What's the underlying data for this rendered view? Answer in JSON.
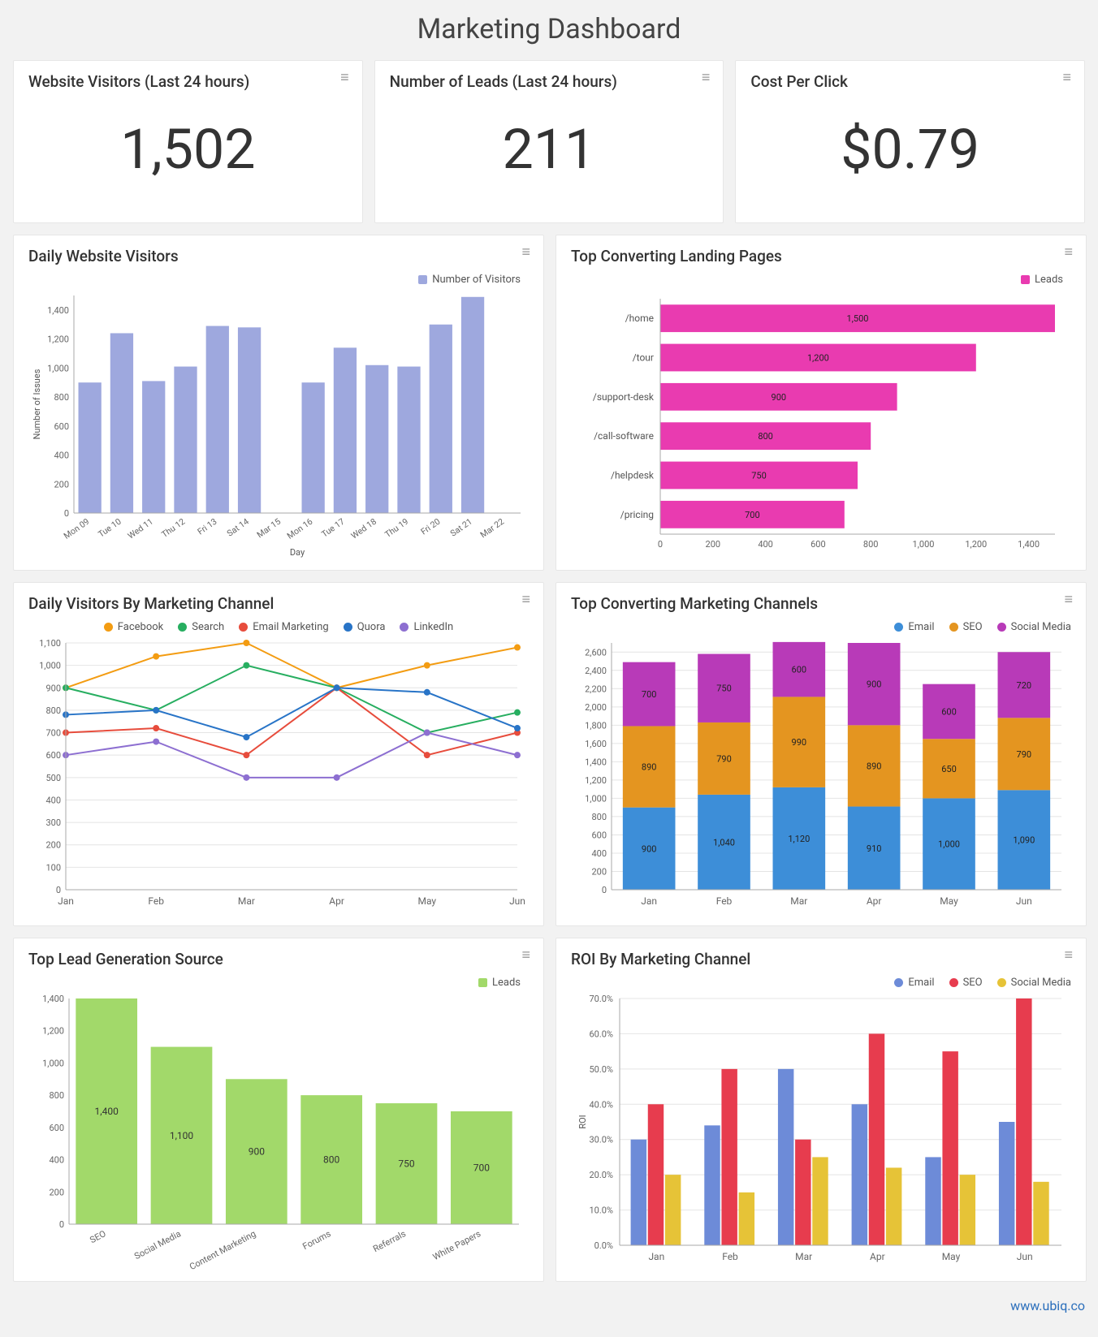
{
  "title": "Marketing Dashboard",
  "footer": "www.ubiq.co",
  "colors": {
    "card_bg": "#ffffff",
    "page_bg": "#f2f2f2",
    "grid": "#e4e4e4",
    "axis": "#888888",
    "text": "#333333"
  },
  "metrics": [
    {
      "title": "Website Visitors (Last 24 hours)",
      "value": "1,502"
    },
    {
      "title": "Number of Leads (Last 24 hours)",
      "value": "211"
    },
    {
      "title": "Cost Per Click",
      "value": "$0.79"
    }
  ],
  "daily_visitors": {
    "title": "Daily Website Visitors",
    "type": "bar",
    "legend_label": "Number of Visitors",
    "ylabel": "Number of Issues",
    "xlabel": "Day",
    "bar_color": "#9ea8de",
    "ylim": [
      0,
      1500
    ],
    "ytick_step": 200,
    "categories": [
      "Mon 09",
      "Tue 10",
      "Wed 11",
      "Thu 12",
      "Fri 13",
      "Sat 14",
      "Mar 15",
      "Mon 16",
      "Tue 17",
      "Wed 18",
      "Thu 19",
      "Fri 20",
      "Sat 21",
      "Mar 22"
    ],
    "values": [
      900,
      1240,
      910,
      1010,
      1290,
      1280,
      null,
      900,
      1140,
      1020,
      1010,
      1300,
      1490,
      null
    ]
  },
  "landing_pages": {
    "title": "Top Converting Landing Pages",
    "type": "hbar",
    "legend_label": "Leads",
    "bar_color": "#e93bb0",
    "xlim": [
      0,
      1500
    ],
    "xtick_step": 200,
    "items": [
      {
        "label": "/home",
        "value": 1500
      },
      {
        "label": "/tour",
        "value": 1200
      },
      {
        "label": "/support-desk",
        "value": 900
      },
      {
        "label": "/call-software",
        "value": 800
      },
      {
        "label": "/helpdesk",
        "value": 750
      },
      {
        "label": "/pricing",
        "value": 700
      }
    ]
  },
  "visitors_by_channel": {
    "title": "Daily Visitors By Marketing Channel",
    "type": "line",
    "ylim": [
      0,
      1100
    ],
    "ytick_step": 100,
    "xcats": [
      "Jan",
      "Feb",
      "Mar",
      "Apr",
      "May",
      "Jun"
    ],
    "series": [
      {
        "name": "Facebook",
        "color": "#f39c12",
        "values": [
          900,
          1040,
          1100,
          900,
          1000,
          1080
        ]
      },
      {
        "name": "Search",
        "color": "#27ae60",
        "values": [
          900,
          800,
          1000,
          900,
          700,
          790
        ]
      },
      {
        "name": "Email Marketing",
        "color": "#e74c3c",
        "values": [
          700,
          720,
          600,
          900,
          600,
          700
        ]
      },
      {
        "name": "Quora",
        "color": "#2874c7",
        "values": [
          780,
          800,
          680,
          900,
          880,
          720
        ]
      },
      {
        "name": "LinkedIn",
        "color": "#8d6fd1",
        "values": [
          600,
          660,
          500,
          500,
          700,
          600
        ]
      }
    ]
  },
  "converting_channels": {
    "title": "Top Converting Marketing Channels",
    "type": "stacked-bar",
    "ylim": [
      0,
      2700
    ],
    "ytick_step": 200,
    "xcats": [
      "Jan",
      "Feb",
      "Mar",
      "Apr",
      "May",
      "Jun"
    ],
    "series": [
      {
        "name": "Email",
        "color": "#3d8ed8",
        "values": [
          900,
          1040,
          1120,
          910,
          1000,
          1090
        ]
      },
      {
        "name": "SEO",
        "color": "#e49520",
        "values": [
          890,
          790,
          990,
          890,
          650,
          790
        ]
      },
      {
        "name": "Social Media",
        "color": "#b83ab8",
        "values": [
          700,
          750,
          600,
          900,
          600,
          720
        ]
      }
    ]
  },
  "lead_source": {
    "title": "Top Lead Generation Source",
    "type": "bar",
    "legend_label": "Leads",
    "bar_color": "#a2d96a",
    "ylim": [
      0,
      1400
    ],
    "ytick_step": 200,
    "items": [
      {
        "label": "SEO",
        "value": 1400
      },
      {
        "label": "Social Media",
        "value": 1100
      },
      {
        "label": "Content Marketing",
        "value": 900
      },
      {
        "label": "Forums",
        "value": 800
      },
      {
        "label": "Referrals",
        "value": 750
      },
      {
        "label": "White Papers",
        "value": 700
      }
    ]
  },
  "roi": {
    "title": "ROI By Marketing Channel",
    "type": "grouped-bar",
    "ylabel": "ROI",
    "ylim": [
      0,
      70
    ],
    "ytick_step": 10,
    "ysuffix": "%",
    "xcats": [
      "Jan",
      "Feb",
      "Mar",
      "Apr",
      "May",
      "Jun"
    ],
    "series": [
      {
        "name": "Email",
        "color": "#6d8bd8",
        "values": [
          30,
          34,
          50,
          40,
          25,
          35
        ]
      },
      {
        "name": "SEO",
        "color": "#e73c4e",
        "values": [
          40,
          50,
          30,
          60,
          55,
          70
        ]
      },
      {
        "name": "Social Media",
        "color": "#e6c337",
        "values": [
          20,
          15,
          25,
          22,
          20,
          18
        ]
      }
    ]
  }
}
